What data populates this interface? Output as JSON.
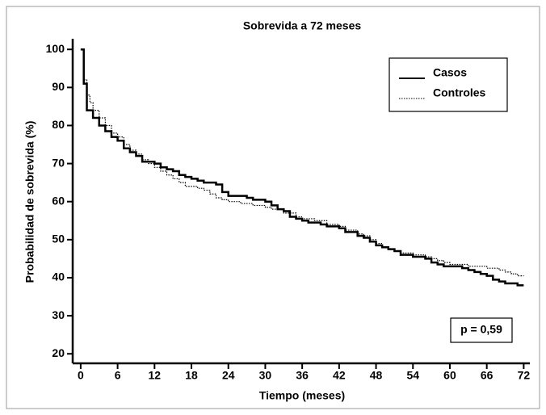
{
  "chart_data": {
    "type": "line",
    "step": true,
    "title": "Sobrevida a 72 meses",
    "x_label": "Tiempo (meses)",
    "y_label": "Probabilidad de sobrevida (%)",
    "annotation": "p = 0,59",
    "xlim": [
      -1.3,
      73
    ],
    "ylim": [
      17.5,
      102.8
    ],
    "xticks": [
      0,
      6,
      12,
      18,
      24,
      30,
      36,
      42,
      48,
      54,
      60,
      66,
      72
    ],
    "yticks": [
      20,
      30,
      40,
      50,
      60,
      70,
      80,
      90,
      100
    ],
    "legend": "top-right",
    "series": [
      {
        "name": "Casos",
        "color": "#000000",
        "line_style": "solid",
        "x": [
          0,
          0.5,
          1,
          2,
          3,
          4,
          5,
          6,
          7,
          8,
          9,
          10,
          12,
          13,
          14,
          15,
          16,
          17,
          18,
          19,
          20,
          22,
          23,
          24,
          27,
          28,
          30,
          31,
          32,
          33,
          34,
          35,
          36,
          37,
          39,
          40,
          42,
          43,
          45,
          46,
          47,
          48,
          49,
          50,
          51,
          52,
          54,
          56,
          57,
          58,
          59,
          62,
          63,
          64,
          65,
          66,
          67,
          68,
          69,
          71,
          72
        ],
        "values": [
          100,
          91,
          84,
          82,
          80,
          78.5,
          77,
          76,
          74,
          73,
          72,
          70.5,
          70,
          69,
          68.5,
          68,
          67,
          66.5,
          66,
          65.5,
          65,
          64.5,
          62.5,
          61.5,
          61,
          60.5,
          60,
          59,
          58,
          57.5,
          56,
          55.5,
          55,
          54.5,
          54,
          53.5,
          53,
          52,
          51,
          50.5,
          49.5,
          48.5,
          48,
          47.5,
          47,
          46,
          45.5,
          45,
          44,
          43.5,
          43,
          42.5,
          42,
          41.5,
          41,
          40.5,
          39.5,
          39,
          38.5,
          38,
          38
        ]
      },
      {
        "name": "Controles",
        "color": "#000000",
        "line_style": "dotted",
        "x": [
          0,
          0.5,
          1,
          1.5,
          2,
          3,
          4,
          5,
          6,
          7,
          8,
          9,
          10,
          11,
          12,
          13,
          14,
          15,
          16,
          17,
          19,
          20,
          21,
          22,
          23,
          24,
          26,
          28,
          30,
          31,
          33,
          35,
          36,
          38,
          40,
          42,
          43,
          45,
          46,
          47,
          48,
          49,
          50,
          51,
          52,
          54,
          56,
          57,
          58,
          59,
          60,
          63,
          66,
          68,
          69,
          70,
          71,
          72
        ],
        "values": [
          100,
          92,
          88,
          86,
          84,
          82,
          80,
          78,
          77,
          75,
          73.5,
          72.5,
          71,
          70,
          69,
          68,
          67,
          66,
          65,
          64,
          63.5,
          63,
          62,
          61,
          60.5,
          60,
          59.5,
          59,
          58.5,
          58,
          57,
          56,
          55.5,
          55,
          54,
          53.5,
          52.5,
          51.5,
          51,
          50,
          49,
          48,
          47.5,
          47,
          46.5,
          46,
          45.5,
          45,
          44.5,
          44,
          43.5,
          43,
          42.5,
          42,
          41.5,
          41,
          40.5,
          40.5
        ]
      }
    ]
  }
}
